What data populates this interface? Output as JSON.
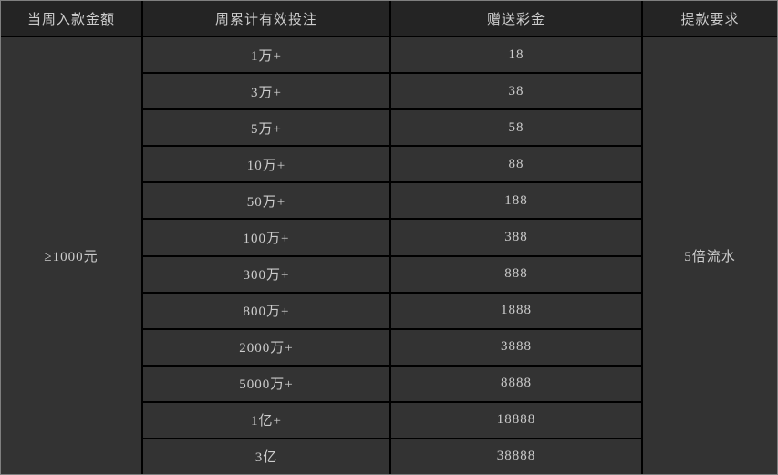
{
  "colors": {
    "outer_border": "#7f7f7f",
    "grid_line": "#000000",
    "header_bg": "#242424",
    "row_bg": "#333333",
    "text": "#cccccc"
  },
  "table": {
    "headers": {
      "deposit": "当周入款金额",
      "bet": "周累计有效投注",
      "bonus": "赠送彩金",
      "withdraw": "提款要求"
    },
    "deposit_value": "≥1000元",
    "withdraw_value": "5倍流水",
    "rows": [
      {
        "bet": "1万+",
        "bonus": "18"
      },
      {
        "bet": "3万+",
        "bonus": "38"
      },
      {
        "bet": "5万+",
        "bonus": "58"
      },
      {
        "bet": "10万+",
        "bonus": "88"
      },
      {
        "bet": "50万+",
        "bonus": "188"
      },
      {
        "bet": "100万+",
        "bonus": "388"
      },
      {
        "bet": "300万+",
        "bonus": "888"
      },
      {
        "bet": "800万+",
        "bonus": "1888"
      },
      {
        "bet": "2000万+",
        "bonus": "3888"
      },
      {
        "bet": "5000万+",
        "bonus": "8888"
      },
      {
        "bet": "1亿+",
        "bonus": "18888"
      },
      {
        "bet": "3亿",
        "bonus": "38888"
      }
    ]
  },
  "chart_data": {
    "type": "table",
    "columns": [
      "当周入款金额",
      "周累计有效投注",
      "赠送彩金",
      "提款要求"
    ],
    "merged_cells": {
      "当周入款金额": "≥1000元",
      "提款要求": "5倍流水"
    },
    "rows": [
      [
        "1万+",
        18
      ],
      [
        "3万+",
        38
      ],
      [
        "5万+",
        58
      ],
      [
        "10万+",
        88
      ],
      [
        "50万+",
        188
      ],
      [
        "100万+",
        388
      ],
      [
        "300万+",
        888
      ],
      [
        "800万+",
        1888
      ],
      [
        "2000万+",
        3888
      ],
      [
        "5000万+",
        8888
      ],
      [
        "1亿+",
        18888
      ],
      [
        "3亿",
        38888
      ]
    ]
  }
}
